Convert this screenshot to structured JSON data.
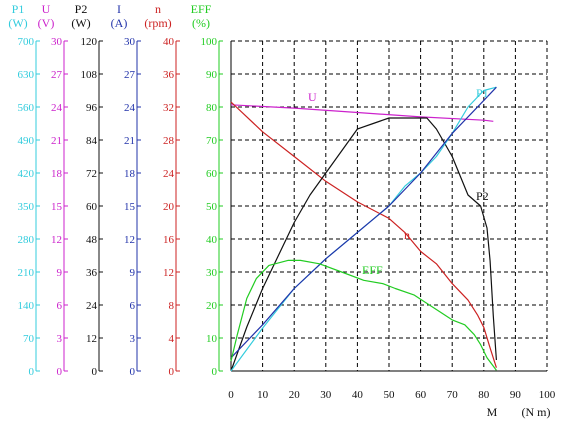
{
  "chart_data": {
    "type": "line",
    "x": {
      "label": "M",
      "unit": "(N m)",
      "range": [
        0,
        100
      ],
      "ticks": [
        "0",
        "10",
        "20",
        "30",
        "40",
        "50",
        "60",
        "70",
        "80",
        "90",
        "100"
      ]
    },
    "y_axes": [
      {
        "id": "P1",
        "name": "P1",
        "unit": "(W)",
        "color": "#33ccdd",
        "range": [
          0,
          700
        ],
        "ticks": [
          "0",
          "70",
          "140",
          "210",
          "280",
          "350",
          "420",
          "490",
          "560",
          "630",
          "700"
        ]
      },
      {
        "id": "U",
        "name": "U",
        "unit": "(V)",
        "color": "#cc22cc",
        "range": [
          0,
          30
        ],
        "ticks": [
          "0",
          "3",
          "6",
          "9",
          "12",
          "15",
          "18",
          "21",
          "24",
          "27",
          "30"
        ]
      },
      {
        "id": "P2",
        "name": "P2",
        "unit": "(W)",
        "color": "#111111",
        "range": [
          0,
          120
        ],
        "ticks": [
          "0",
          "12",
          "24",
          "36",
          "48",
          "60",
          "72",
          "84",
          "96",
          "108",
          "120"
        ]
      },
      {
        "id": "I",
        "name": "I",
        "unit": "(A)",
        "color": "#2233aa",
        "range": [
          0,
          30
        ],
        "ticks": [
          "0",
          "3",
          "6",
          "9",
          "12",
          "15",
          "18",
          "21",
          "24",
          "27",
          "30"
        ]
      },
      {
        "id": "n",
        "name": "n",
        "unit": "(rpm)",
        "color": "#cc2222",
        "range": [
          0,
          40
        ],
        "ticks": [
          "0",
          "4",
          "8",
          "12",
          "16",
          "20",
          "24",
          "28",
          "32",
          "36",
          "40"
        ]
      },
      {
        "id": "EFF",
        "name": "EFF",
        "unit": "(%)",
        "color": "#22cc22",
        "range": [
          0,
          100
        ],
        "ticks": [
          "0",
          "10",
          "20",
          "30",
          "40",
          "50",
          "60",
          "70",
          "80",
          "90",
          "100"
        ]
      }
    ],
    "series": [
      {
        "name": "U",
        "axis": "U",
        "color": "#cc22cc",
        "points": [
          [
            0,
            24.2
          ],
          [
            20,
            23.9
          ],
          [
            40,
            23.5
          ],
          [
            60,
            23.1
          ],
          [
            80,
            22.8
          ],
          [
            83,
            22.7
          ]
        ]
      },
      {
        "name": "n",
        "axis": "n",
        "color": "#cc2222",
        "points": [
          [
            0,
            32.6
          ],
          [
            10,
            29.0
          ],
          [
            20,
            26.0
          ],
          [
            30,
            23.0
          ],
          [
            40,
            20.5
          ],
          [
            50,
            18.5
          ],
          [
            55,
            16.8
          ],
          [
            60,
            14.5
          ],
          [
            65,
            13.0
          ],
          [
            70,
            10.6
          ],
          [
            75,
            8.6
          ],
          [
            78,
            6.8
          ],
          [
            80,
            5.3
          ],
          [
            82,
            2.8
          ],
          [
            84,
            0.4
          ]
        ]
      },
      {
        "name": "P2",
        "axis": "P2",
        "color": "#111111",
        "points": [
          [
            0,
            0
          ],
          [
            5,
            16
          ],
          [
            10,
            30
          ],
          [
            15,
            42
          ],
          [
            20,
            54
          ],
          [
            25,
            64
          ],
          [
            30,
            72
          ],
          [
            35,
            80
          ],
          [
            40,
            88
          ],
          [
            45,
            90
          ],
          [
            50,
            92
          ],
          [
            57,
            92
          ],
          [
            62,
            92
          ],
          [
            65,
            88
          ],
          [
            70,
            78
          ],
          [
            75,
            64
          ],
          [
            79,
            60
          ],
          [
            81,
            52
          ],
          [
            82,
            40
          ],
          [
            83,
            20
          ],
          [
            84,
            4
          ]
        ]
      },
      {
        "name": "P1",
        "axis": "P1",
        "color": "#33ccdd",
        "points": [
          [
            0,
            0
          ],
          [
            10,
            91
          ],
          [
            20,
            175
          ],
          [
            30,
            238
          ],
          [
            40,
            294
          ],
          [
            50,
            350
          ],
          [
            55,
            392
          ],
          [
            60,
            420
          ],
          [
            65,
            455
          ],
          [
            70,
            504
          ],
          [
            75,
            560
          ],
          [
            80,
            595
          ],
          [
            84,
            602
          ]
        ]
      },
      {
        "name": "I",
        "axis": "I",
        "color": "#2233aa",
        "points": [
          [
            0,
            1.2
          ],
          [
            10,
            4.2
          ],
          [
            20,
            7.5
          ],
          [
            30,
            10.2
          ],
          [
            40,
            12.6
          ],
          [
            50,
            15.0
          ],
          [
            60,
            18.0
          ],
          [
            70,
            21.6
          ],
          [
            80,
            24.6
          ],
          [
            84,
            25.8
          ]
        ]
      },
      {
        "name": "EFF",
        "axis": "EFF",
        "color": "#22cc22",
        "points": [
          [
            0,
            3
          ],
          [
            2,
            11
          ],
          [
            5,
            22
          ],
          [
            8,
            28
          ],
          [
            12,
            32
          ],
          [
            18,
            33.5
          ],
          [
            22,
            33.5
          ],
          [
            28,
            32.5
          ],
          [
            35,
            30
          ],
          [
            42,
            27.5
          ],
          [
            48,
            26.5
          ],
          [
            52,
            25
          ],
          [
            58,
            23
          ],
          [
            62,
            20.5
          ],
          [
            66,
            18
          ],
          [
            70,
            15.5
          ],
          [
            74,
            14
          ],
          [
            77,
            11
          ],
          [
            79,
            8
          ],
          [
            81,
            4
          ],
          [
            83,
            1.5
          ],
          [
            84,
            0.2
          ]
        ]
      }
    ],
    "grid": true,
    "grid_style": "dashed"
  }
}
